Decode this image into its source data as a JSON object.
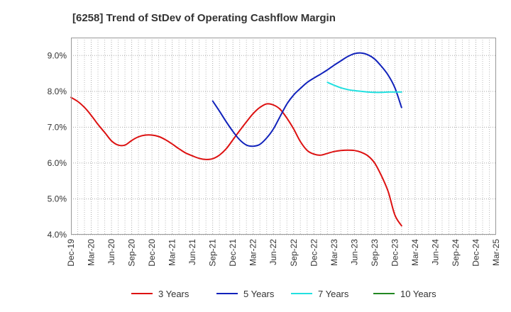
{
  "chart_data": {
    "type": "line",
    "title": "[6258]  Trend of StDev of Operating Cashflow Margin",
    "xlabel": "",
    "ylabel": "",
    "ylim": [
      4.0,
      9.5
    ],
    "yticks": [
      "4.0%",
      "5.0%",
      "6.0%",
      "7.0%",
      "8.0%",
      "9.0%"
    ],
    "ytick_values": [
      4.0,
      5.0,
      6.0,
      7.0,
      8.0,
      9.0
    ],
    "categories": [
      "Dec-19",
      "Mar-20",
      "Jun-20",
      "Sep-20",
      "Dec-20",
      "Mar-21",
      "Jun-21",
      "Sep-21",
      "Dec-21",
      "Mar-22",
      "Jun-22",
      "Sep-22",
      "Dec-22",
      "Mar-23",
      "Jun-23",
      "Sep-23",
      "Dec-23",
      "Mar-24",
      "Jun-24",
      "Sep-24",
      "Dec-24",
      "Mar-25"
    ],
    "grid": true,
    "legend_position": "bottom",
    "series": [
      {
        "name": "3 Years",
        "color": "#dd1111",
        "points": [
          [
            0,
            7.83
          ],
          [
            0.33,
            7.72
          ],
          [
            0.67,
            7.55
          ],
          [
            1,
            7.33
          ],
          [
            1.33,
            7.08
          ],
          [
            1.67,
            6.85
          ],
          [
            2,
            6.62
          ],
          [
            2.33,
            6.5
          ],
          [
            2.67,
            6.5
          ],
          [
            3,
            6.63
          ],
          [
            3.33,
            6.73
          ],
          [
            3.67,
            6.78
          ],
          [
            4,
            6.78
          ],
          [
            4.33,
            6.74
          ],
          [
            4.67,
            6.65
          ],
          [
            5,
            6.53
          ],
          [
            5.33,
            6.4
          ],
          [
            5.67,
            6.28
          ],
          [
            6,
            6.2
          ],
          [
            6.33,
            6.13
          ],
          [
            6.67,
            6.1
          ],
          [
            7,
            6.12
          ],
          [
            7.33,
            6.22
          ],
          [
            7.67,
            6.4
          ],
          [
            8,
            6.65
          ],
          [
            8.33,
            6.9
          ],
          [
            8.67,
            7.15
          ],
          [
            9,
            7.38
          ],
          [
            9.33,
            7.55
          ],
          [
            9.67,
            7.65
          ],
          [
            10,
            7.62
          ],
          [
            10.33,
            7.5
          ],
          [
            10.67,
            7.25
          ],
          [
            11,
            6.95
          ],
          [
            11.33,
            6.6
          ],
          [
            11.67,
            6.35
          ],
          [
            12,
            6.25
          ],
          [
            12.33,
            6.22
          ],
          [
            12.67,
            6.27
          ],
          [
            13,
            6.32
          ],
          [
            13.33,
            6.35
          ],
          [
            13.67,
            6.36
          ],
          [
            14,
            6.35
          ],
          [
            14.33,
            6.3
          ],
          [
            14.67,
            6.2
          ],
          [
            15,
            6.0
          ],
          [
            15.33,
            5.65
          ],
          [
            15.67,
            5.2
          ],
          [
            16,
            4.55
          ],
          [
            16.33,
            4.25
          ]
        ]
      },
      {
        "name": "5 Years",
        "color": "#1122bb",
        "points": [
          [
            7,
            7.73
          ],
          [
            7.33,
            7.45
          ],
          [
            7.67,
            7.15
          ],
          [
            8,
            6.88
          ],
          [
            8.33,
            6.65
          ],
          [
            8.67,
            6.5
          ],
          [
            9,
            6.47
          ],
          [
            9.33,
            6.52
          ],
          [
            9.67,
            6.7
          ],
          [
            10,
            6.95
          ],
          [
            10.33,
            7.3
          ],
          [
            10.67,
            7.65
          ],
          [
            11,
            7.9
          ],
          [
            11.33,
            8.08
          ],
          [
            11.67,
            8.25
          ],
          [
            12,
            8.37
          ],
          [
            12.33,
            8.48
          ],
          [
            12.67,
            8.6
          ],
          [
            13,
            8.73
          ],
          [
            13.33,
            8.85
          ],
          [
            13.67,
            8.97
          ],
          [
            14,
            9.05
          ],
          [
            14.33,
            9.07
          ],
          [
            14.67,
            9.02
          ],
          [
            15,
            8.9
          ],
          [
            15.33,
            8.7
          ],
          [
            15.67,
            8.45
          ],
          [
            16,
            8.1
          ],
          [
            16.33,
            7.55
          ]
        ]
      },
      {
        "name": "7 Years",
        "color": "#22e0e0",
        "points": [
          [
            12.67,
            8.25
          ],
          [
            13,
            8.17
          ],
          [
            13.33,
            8.1
          ],
          [
            13.67,
            8.05
          ],
          [
            14,
            8.02
          ],
          [
            14.33,
            8.0
          ],
          [
            14.67,
            7.98
          ],
          [
            15,
            7.97
          ],
          [
            15.33,
            7.97
          ],
          [
            15.67,
            7.98
          ],
          [
            16,
            7.98
          ],
          [
            16.33,
            7.98
          ]
        ]
      },
      {
        "name": "10 Years",
        "color": "#228822",
        "points": []
      }
    ]
  }
}
